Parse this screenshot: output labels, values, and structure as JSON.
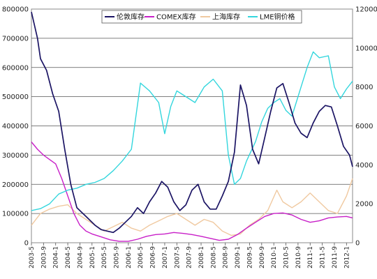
{
  "chart_data": {
    "type": "line",
    "title": "",
    "xlabel": "",
    "ylabel_left": "",
    "ylabel_right": "",
    "y_left": {
      "min": 0,
      "max": 800000,
      "ticks": [
        "0",
        "100000",
        "200000",
        "300000",
        "400000",
        "500000",
        "600000",
        "700000",
        "800000"
      ]
    },
    "y_right": {
      "min": 0,
      "max": 12000,
      "ticks": [
        "0",
        "2000",
        "4000",
        "6000",
        "8000",
        "10000",
        "12000"
      ]
    },
    "x": {
      "start": "2003-05",
      "end": "2012-03",
      "ticks": [
        "2003-5",
        "2003-9",
        "2004-1",
        "2004-5",
        "2004-9",
        "2005-1",
        "2005-5",
        "2005-9",
        "2006-1",
        "2006-5",
        "2006-9",
        "2007-1",
        "2007-5",
        "2007-9",
        "2008-1",
        "2008-5",
        "2008-9",
        "2009-1",
        "2009-5",
        "2009-9",
        "2010-1",
        "2010-5",
        "2010-9",
        "2011-1",
        "2011-5",
        "2011-9",
        "2012-1"
      ]
    },
    "grid": {
      "horizontal": true,
      "vertical": false
    },
    "legend": {
      "placement": "top-center"
    },
    "series": [
      {
        "name": "伦敦库存",
        "axis": "left",
        "color": "#1b1464",
        "points": [
          [
            "2003-05",
            790000
          ],
          [
            "2003-07",
            700000
          ],
          [
            "2003-08",
            630000
          ],
          [
            "2003-10",
            590000
          ],
          [
            "2003-12",
            510000
          ],
          [
            "2004-02",
            450000
          ],
          [
            "2004-04",
            320000
          ],
          [
            "2004-06",
            200000
          ],
          [
            "2004-08",
            120000
          ],
          [
            "2004-10",
            100000
          ],
          [
            "2004-12",
            80000
          ],
          [
            "2005-02",
            60000
          ],
          [
            "2005-04",
            45000
          ],
          [
            "2005-06",
            40000
          ],
          [
            "2005-08",
            35000
          ],
          [
            "2005-10",
            50000
          ],
          [
            "2005-12",
            70000
          ],
          [
            "2006-02",
            90000
          ],
          [
            "2006-04",
            120000
          ],
          [
            "2006-06",
            100000
          ],
          [
            "2006-08",
            140000
          ],
          [
            "2006-10",
            170000
          ],
          [
            "2006-12",
            210000
          ],
          [
            "2007-02",
            190000
          ],
          [
            "2007-04",
            140000
          ],
          [
            "2007-06",
            110000
          ],
          [
            "2007-08",
            130000
          ],
          [
            "2007-10",
            180000
          ],
          [
            "2007-12",
            200000
          ],
          [
            "2008-02",
            140000
          ],
          [
            "2008-04",
            115000
          ],
          [
            "2008-06",
            115000
          ],
          [
            "2008-08",
            160000
          ],
          [
            "2008-10",
            210000
          ],
          [
            "2008-12",
            310000
          ],
          [
            "2009-02",
            540000
          ],
          [
            "2009-04",
            470000
          ],
          [
            "2009-06",
            320000
          ],
          [
            "2009-08",
            270000
          ],
          [
            "2009-10",
            360000
          ],
          [
            "2009-12",
            450000
          ],
          [
            "2010-02",
            530000
          ],
          [
            "2010-04",
            545000
          ],
          [
            "2010-06",
            480000
          ],
          [
            "2010-08",
            410000
          ],
          [
            "2010-10",
            375000
          ],
          [
            "2010-12",
            360000
          ],
          [
            "2011-02",
            410000
          ],
          [
            "2011-04",
            450000
          ],
          [
            "2011-06",
            470000
          ],
          [
            "2011-08",
            465000
          ],
          [
            "2011-10",
            400000
          ],
          [
            "2011-12",
            330000
          ],
          [
            "2012-02",
            300000
          ],
          [
            "2012-03",
            260000
          ]
        ]
      },
      {
        "name": "COMEX库存",
        "axis": "left",
        "color": "#c81fc8",
        "points": [
          [
            "2003-05",
            345000
          ],
          [
            "2003-07",
            320000
          ],
          [
            "2003-09",
            300000
          ],
          [
            "2003-11",
            285000
          ],
          [
            "2004-01",
            270000
          ],
          [
            "2004-03",
            220000
          ],
          [
            "2004-05",
            160000
          ],
          [
            "2004-07",
            100000
          ],
          [
            "2004-09",
            60000
          ],
          [
            "2004-11",
            40000
          ],
          [
            "2005-01",
            30000
          ],
          [
            "2005-04",
            20000
          ],
          [
            "2005-07",
            10000
          ],
          [
            "2005-10",
            5000
          ],
          [
            "2006-01",
            5000
          ],
          [
            "2006-04",
            12000
          ],
          [
            "2006-07",
            22000
          ],
          [
            "2006-10",
            28000
          ],
          [
            "2007-01",
            30000
          ],
          [
            "2007-04",
            35000
          ],
          [
            "2007-07",
            32000
          ],
          [
            "2007-10",
            28000
          ],
          [
            "2008-01",
            22000
          ],
          [
            "2008-04",
            15000
          ],
          [
            "2008-07",
            8000
          ],
          [
            "2008-10",
            12000
          ],
          [
            "2009-01",
            28000
          ],
          [
            "2009-04",
            50000
          ],
          [
            "2009-07",
            70000
          ],
          [
            "2009-10",
            90000
          ],
          [
            "2010-01",
            100000
          ],
          [
            "2010-04",
            102000
          ],
          [
            "2010-07",
            95000
          ],
          [
            "2010-10",
            80000
          ],
          [
            "2011-01",
            70000
          ],
          [
            "2011-04",
            75000
          ],
          [
            "2011-07",
            85000
          ],
          [
            "2011-10",
            88000
          ],
          [
            "2012-01",
            90000
          ],
          [
            "2012-03",
            85000
          ]
        ]
      },
      {
        "name": "上海库存",
        "axis": "left",
        "color": "#f0c9a0",
        "points": [
          [
            "2003-05",
            60000
          ],
          [
            "2003-08",
            100000
          ],
          [
            "2003-11",
            115000
          ],
          [
            "2004-02",
            125000
          ],
          [
            "2004-05",
            130000
          ],
          [
            "2004-08",
            100000
          ],
          [
            "2004-11",
            80000
          ],
          [
            "2005-02",
            60000
          ],
          [
            "2005-05",
            40000
          ],
          [
            "2005-08",
            55000
          ],
          [
            "2005-11",
            70000
          ],
          [
            "2006-02",
            50000
          ],
          [
            "2006-05",
            40000
          ],
          [
            "2006-08",
            60000
          ],
          [
            "2006-11",
            75000
          ],
          [
            "2007-02",
            90000
          ],
          [
            "2007-05",
            100000
          ],
          [
            "2007-08",
            80000
          ],
          [
            "2007-11",
            60000
          ],
          [
            "2008-02",
            80000
          ],
          [
            "2008-05",
            70000
          ],
          [
            "2008-08",
            40000
          ],
          [
            "2008-11",
            25000
          ],
          [
            "2009-02",
            30000
          ],
          [
            "2009-05",
            60000
          ],
          [
            "2009-08",
            80000
          ],
          [
            "2009-11",
            110000
          ],
          [
            "2010-02",
            180000
          ],
          [
            "2010-04",
            140000
          ],
          [
            "2010-07",
            120000
          ],
          [
            "2010-10",
            140000
          ],
          [
            "2011-01",
            170000
          ],
          [
            "2011-04",
            140000
          ],
          [
            "2011-07",
            110000
          ],
          [
            "2011-10",
            100000
          ],
          [
            "2012-01",
            160000
          ],
          [
            "2012-03",
            220000
          ]
        ]
      },
      {
        "name": "LME铜价格",
        "axis": "right",
        "color": "#33d6dd",
        "points": [
          [
            "2003-05",
            1650
          ],
          [
            "2003-08",
            1750
          ],
          [
            "2003-11",
            2000
          ],
          [
            "2004-02",
            2500
          ],
          [
            "2004-05",
            2700
          ],
          [
            "2004-08",
            2800
          ],
          [
            "2004-11",
            3000
          ],
          [
            "2005-02",
            3100
          ],
          [
            "2005-05",
            3300
          ],
          [
            "2005-08",
            3700
          ],
          [
            "2005-11",
            4200
          ],
          [
            "2006-02",
            4800
          ],
          [
            "2006-05",
            8200
          ],
          [
            "2006-08",
            7800
          ],
          [
            "2006-11",
            7200
          ],
          [
            "2007-01",
            5600
          ],
          [
            "2007-03",
            7000
          ],
          [
            "2007-05",
            7800
          ],
          [
            "2007-08",
            7500
          ],
          [
            "2007-11",
            7200
          ],
          [
            "2008-02",
            8000
          ],
          [
            "2008-05",
            8400
          ],
          [
            "2008-08",
            7800
          ],
          [
            "2008-10",
            4500
          ],
          [
            "2008-12",
            3000
          ],
          [
            "2009-02",
            3300
          ],
          [
            "2009-04",
            4200
          ],
          [
            "2009-07",
            5200
          ],
          [
            "2009-09",
            6200
          ],
          [
            "2009-11",
            6900
          ],
          [
            "2010-01",
            7200
          ],
          [
            "2010-03",
            7400
          ],
          [
            "2010-05",
            6800
          ],
          [
            "2010-07",
            6500
          ],
          [
            "2010-10",
            8000
          ],
          [
            "2010-12",
            9000
          ],
          [
            "2011-02",
            9800
          ],
          [
            "2011-04",
            9500
          ],
          [
            "2011-07",
            9600
          ],
          [
            "2011-09",
            8000
          ],
          [
            "2011-11",
            7400
          ],
          [
            "2012-01",
            7900
          ],
          [
            "2012-03",
            8300
          ]
        ]
      }
    ]
  }
}
